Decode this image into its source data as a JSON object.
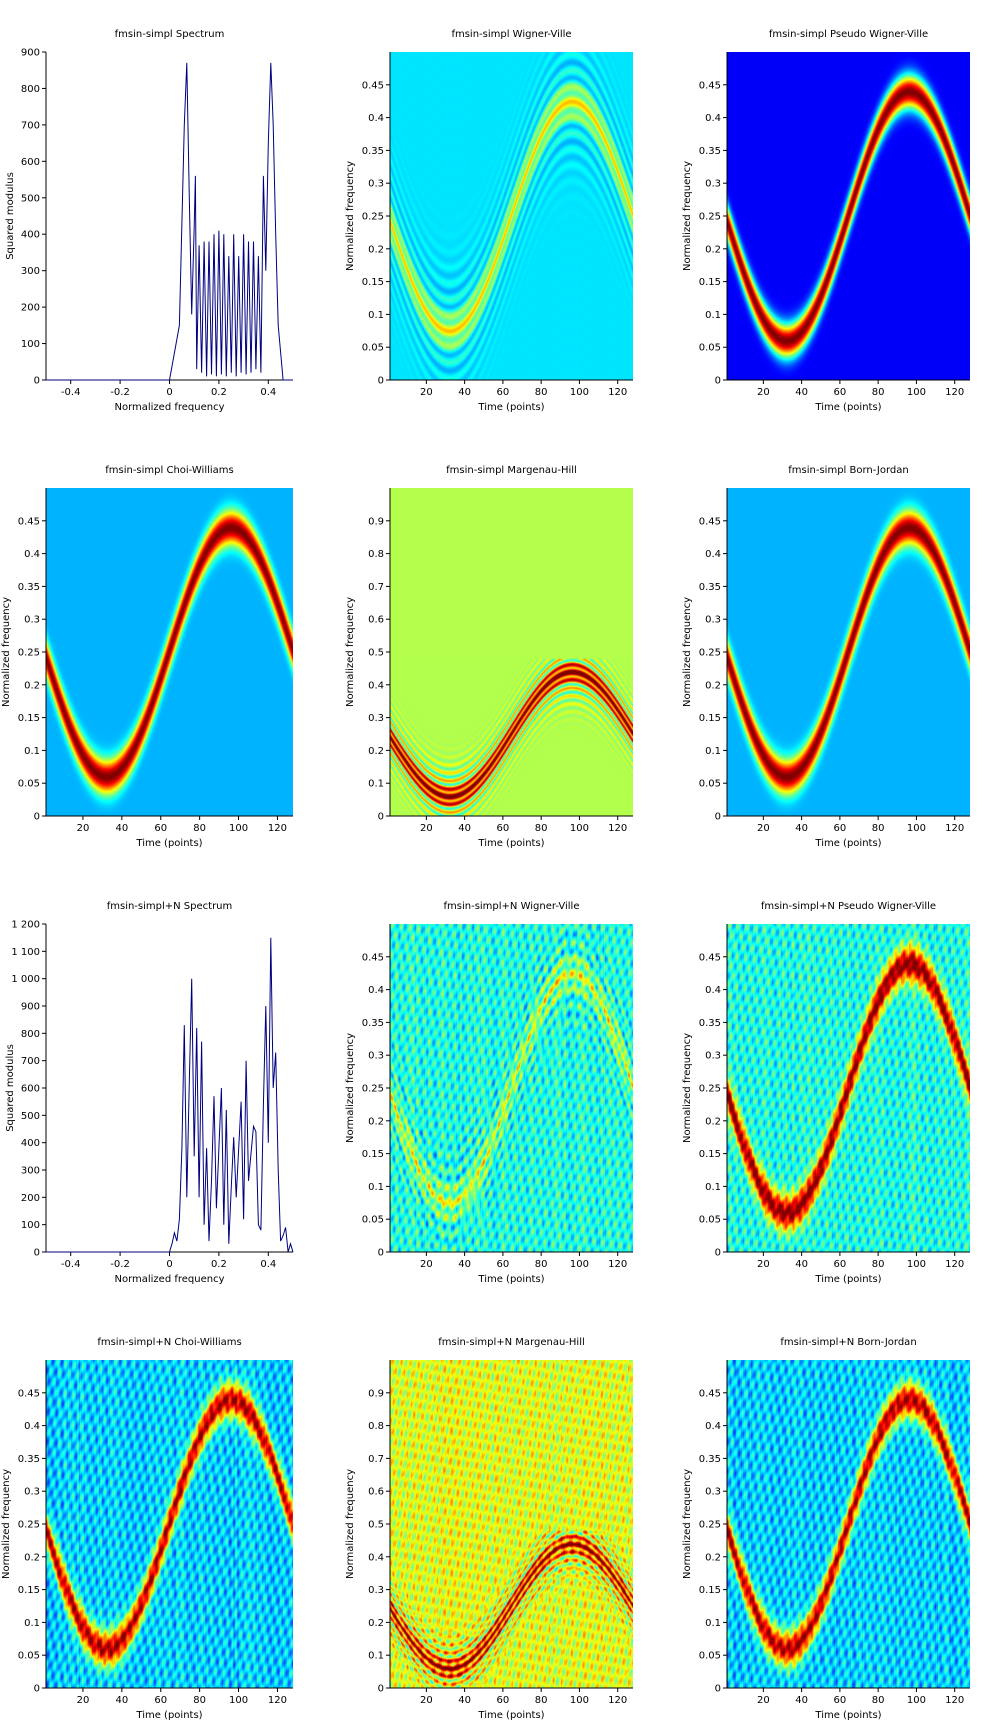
{
  "chart_data": [
    {
      "type": "line",
      "title": "fmsin-simpl Spectrum",
      "xlabel": "Normalized frequency",
      "ylabel": "Squared modulus",
      "xlim": [
        -0.5,
        0.5
      ],
      "ylim": [
        0,
        900
      ],
      "xticks": [
        -0.4,
        -0.2,
        0,
        0.2,
        0.4
      ],
      "xtick_labels": [
        "-0.4",
        "-0.2",
        "0",
        "0.2",
        "0.4"
      ],
      "yticks": [
        0,
        100,
        200,
        300,
        400,
        500,
        600,
        700,
        800,
        900
      ],
      "ytick_labels": [
        "0",
        "100",
        "200",
        "300",
        "400",
        "500",
        "600",
        "700",
        "800",
        "900"
      ],
      "line_color": "#00007f",
      "x": [
        -0.5,
        0.0,
        0.04,
        0.06,
        0.07,
        0.08,
        0.09,
        0.1,
        0.105,
        0.11,
        0.12,
        0.13,
        0.14,
        0.15,
        0.16,
        0.17,
        0.18,
        0.19,
        0.2,
        0.21,
        0.22,
        0.23,
        0.24,
        0.25,
        0.26,
        0.27,
        0.28,
        0.29,
        0.3,
        0.31,
        0.32,
        0.33,
        0.34,
        0.35,
        0.36,
        0.37,
        0.38,
        0.39,
        0.4,
        0.41,
        0.42,
        0.43,
        0.44,
        0.46,
        0.5
      ],
      "y": [
        0,
        0,
        150,
        700,
        870,
        500,
        180,
        420,
        560,
        30,
        370,
        20,
        380,
        10,
        380,
        15,
        400,
        10,
        410,
        15,
        400,
        10,
        340,
        20,
        400,
        10,
        340,
        20,
        400,
        15,
        380,
        20,
        380,
        30,
        340,
        20,
        560,
        300,
        650,
        870,
        700,
        400,
        150,
        0,
        0
      ]
    },
    {
      "type": "heatmap",
      "title": "fmsin-simpl Wigner-Ville",
      "xlabel": "Time (points)",
      "ylabel": "Normalized frequency",
      "xlim": [
        1,
        128
      ],
      "ylim": [
        0,
        0.5
      ],
      "xticks": [
        20,
        40,
        60,
        80,
        100,
        120
      ],
      "xtick_labels": [
        "20",
        "40",
        "60",
        "80",
        "100",
        "120"
      ],
      "yticks": [
        0,
        0.05,
        0.1,
        0.15,
        0.2,
        0.25,
        0.3,
        0.35,
        0.4,
        0.45
      ],
      "ytick_labels": [
        "0",
        "0.05",
        "0.1",
        "0.15",
        "0.2",
        "0.25",
        "0.3",
        "0.35",
        "0.4",
        "0.45"
      ],
      "colormap": "jet",
      "background_level": 0.35,
      "ridge": {
        "center": 0.25,
        "amplitude": 0.175,
        "period": 128,
        "phase_point": 64,
        "peak_level": 0.6,
        "interference_level": 0.15
      }
    },
    {
      "type": "heatmap",
      "title": "fmsin-simpl Pseudo Wigner-Ville",
      "xlabel": "Time (points)",
      "ylabel": "Normalized frequency",
      "xlim": [
        1,
        128
      ],
      "ylim": [
        0,
        0.5
      ],
      "xticks": [
        20,
        40,
        60,
        80,
        100,
        120
      ],
      "xtick_labels": [
        "20",
        "40",
        "60",
        "80",
        "100",
        "120"
      ],
      "yticks": [
        0,
        0.05,
        0.1,
        0.15,
        0.2,
        0.25,
        0.3,
        0.35,
        0.4,
        0.45
      ],
      "ytick_labels": [
        "0",
        "0.05",
        "0.1",
        "0.15",
        "0.2",
        "0.25",
        "0.3",
        "0.35",
        "0.4",
        "0.45"
      ],
      "colormap": "jet",
      "background_level": 0.12,
      "ridge": {
        "center": 0.25,
        "amplitude": 0.19,
        "period": 128,
        "phase_point": 64,
        "peak_level": 1.0
      }
    },
    {
      "type": "heatmap",
      "title": "fmsin-simpl Choi-Williams",
      "xlabel": "Time (points)",
      "ylabel": "Normalized frequency",
      "xlim": [
        1,
        128
      ],
      "ylim": [
        0,
        0.5
      ],
      "xticks": [
        20,
        40,
        60,
        80,
        100,
        120
      ],
      "xtick_labels": [
        "20",
        "40",
        "60",
        "80",
        "100",
        "120"
      ],
      "yticks": [
        0,
        0.05,
        0.1,
        0.15,
        0.2,
        0.25,
        0.3,
        0.35,
        0.4,
        0.45
      ],
      "ytick_labels": [
        "0",
        "0.05",
        "0.1",
        "0.15",
        "0.2",
        "0.25",
        "0.3",
        "0.35",
        "0.4",
        "0.45"
      ],
      "colormap": "jet",
      "background_level": 0.3,
      "ridge": {
        "center": 0.25,
        "amplitude": 0.19,
        "period": 128,
        "phase_point": 64,
        "peak_level": 1.0
      }
    },
    {
      "type": "heatmap",
      "title": "fmsin-simpl Margenau-Hill",
      "xlabel": "Time (points)",
      "ylabel": "Normalized frequency",
      "xlim": [
        1,
        128
      ],
      "ylim": [
        0,
        1
      ],
      "xticks": [
        20,
        40,
        60,
        80,
        100,
        120
      ],
      "xtick_labels": [
        "20",
        "40",
        "60",
        "80",
        "100",
        "120"
      ],
      "yticks": [
        0,
        0.1,
        0.2,
        0.3,
        0.4,
        0.5,
        0.6,
        0.7,
        0.8,
        0.9
      ],
      "ytick_labels": [
        "0",
        "0.1",
        "0.2",
        "0.3",
        "0.4",
        "0.5",
        "0.6",
        "0.7",
        "0.8",
        "0.9"
      ],
      "colormap": "jet",
      "background_level": 0.55,
      "ridge": {
        "center": 0.25,
        "amplitude": 0.19,
        "period": 128,
        "phase_point": 64,
        "peak_level": 1.0,
        "interference_level": 0.4
      }
    },
    {
      "type": "heatmap",
      "title": "fmsin-simpl Born-Jordan",
      "xlabel": "Time (points)",
      "ylabel": "Normalized frequency",
      "xlim": [
        1,
        128
      ],
      "ylim": [
        0,
        0.5
      ],
      "xticks": [
        20,
        40,
        60,
        80,
        100,
        120
      ],
      "xtick_labels": [
        "20",
        "40",
        "60",
        "80",
        "100",
        "120"
      ],
      "yticks": [
        0,
        0.05,
        0.1,
        0.15,
        0.2,
        0.25,
        0.3,
        0.35,
        0.4,
        0.45
      ],
      "ytick_labels": [
        "0",
        "0.05",
        "0.1",
        "0.15",
        "0.2",
        "0.25",
        "0.3",
        "0.35",
        "0.4",
        "0.45"
      ],
      "colormap": "jet",
      "background_level": 0.3,
      "ridge": {
        "center": 0.25,
        "amplitude": 0.19,
        "period": 128,
        "phase_point": 64,
        "peak_level": 1.0
      }
    },
    {
      "type": "line",
      "title": "fmsin-simpl+N Spectrum",
      "xlabel": "Normalized frequency",
      "ylabel": "Squared modulus",
      "xlim": [
        -0.5,
        0.5
      ],
      "ylim": [
        0,
        1200
      ],
      "xticks": [
        -0.4,
        -0.2,
        0,
        0.2,
        0.4
      ],
      "xtick_labels": [
        "-0.4",
        "-0.2",
        "0",
        "0.2",
        "0.4"
      ],
      "yticks": [
        0,
        100,
        200,
        300,
        400,
        500,
        600,
        700,
        800,
        900,
        1000,
        1100,
        1200
      ],
      "ytick_labels": [
        "0",
        "100",
        "200",
        "300",
        "400",
        "500",
        "600",
        "700",
        "800",
        "900",
        "1 000",
        "1 100",
        "1 200"
      ],
      "line_color": "#00007f",
      "x": [
        -0.5,
        0.0,
        0.01,
        0.02,
        0.03,
        0.04,
        0.05,
        0.06,
        0.07,
        0.08,
        0.09,
        0.1,
        0.11,
        0.12,
        0.13,
        0.14,
        0.15,
        0.16,
        0.17,
        0.18,
        0.19,
        0.2,
        0.21,
        0.22,
        0.23,
        0.24,
        0.25,
        0.26,
        0.27,
        0.28,
        0.29,
        0.3,
        0.31,
        0.32,
        0.33,
        0.34,
        0.35,
        0.36,
        0.37,
        0.38,
        0.39,
        0.4,
        0.41,
        0.42,
        0.43,
        0.44,
        0.45,
        0.46,
        0.47,
        0.48,
        0.49,
        0.5
      ],
      "y": [
        0,
        0,
        30,
        70,
        40,
        120,
        380,
        830,
        200,
        620,
        1000,
        350,
        820,
        200,
        770,
        100,
        380,
        40,
        260,
        570,
        160,
        380,
        600,
        100,
        520,
        30,
        240,
        420,
        200,
        380,
        550,
        120,
        700,
        260,
        360,
        460,
        440,
        100,
        80,
        540,
        900,
        400,
        1150,
        600,
        730,
        300,
        40,
        60,
        90,
        0,
        30,
        0
      ]
    },
    {
      "type": "heatmap",
      "title": "fmsin-simpl+N Wigner-Ville",
      "xlabel": "Time (points)",
      "ylabel": "Normalized frequency",
      "xlim": [
        1,
        128
      ],
      "ylim": [
        0,
        0.5
      ],
      "xticks": [
        20,
        40,
        60,
        80,
        100,
        120
      ],
      "xtick_labels": [
        "20",
        "40",
        "60",
        "80",
        "100",
        "120"
      ],
      "yticks": [
        0,
        0.05,
        0.1,
        0.15,
        0.2,
        0.25,
        0.3,
        0.35,
        0.4,
        0.45
      ],
      "ytick_labels": [
        "0",
        "0.05",
        "0.1",
        "0.15",
        "0.2",
        "0.25",
        "0.3",
        "0.35",
        "0.4",
        "0.45"
      ],
      "colormap": "jet",
      "background_level": 0.4,
      "ridge": {
        "center": 0.25,
        "amplitude": 0.175,
        "period": 128,
        "phase_point": 64,
        "peak_level": 0.55,
        "interference_level": 0.15
      }
    },
    {
      "type": "heatmap",
      "title": "fmsin-simpl+N Pseudo Wigner-Ville",
      "xlabel": "Time (points)",
      "ylabel": "Normalized frequency",
      "xlim": [
        1,
        128
      ],
      "ylim": [
        0,
        0.5
      ],
      "xticks": [
        20,
        40,
        60,
        80,
        100,
        120
      ],
      "xtick_labels": [
        "20",
        "40",
        "60",
        "80",
        "100",
        "120"
      ],
      "yticks": [
        0,
        0.05,
        0.1,
        0.15,
        0.2,
        0.25,
        0.3,
        0.35,
        0.4,
        0.45
      ],
      "ytick_labels": [
        "0",
        "0.05",
        "0.1",
        "0.15",
        "0.2",
        "0.25",
        "0.3",
        "0.35",
        "0.4",
        "0.45"
      ],
      "colormap": "jet",
      "background_level": 0.4,
      "ridge": {
        "center": 0.25,
        "amplitude": 0.19,
        "period": 128,
        "phase_point": 64,
        "peak_level": 1.0
      }
    },
    {
      "type": "heatmap",
      "title": "fmsin-simpl+N Choi-Williams",
      "xlabel": "Time (points)",
      "ylabel": "Normalized frequency",
      "xlim": [
        1,
        128
      ],
      "ylim": [
        0,
        0.5
      ],
      "xticks": [
        20,
        40,
        60,
        80,
        100,
        120
      ],
      "xtick_labels": [
        "20",
        "40",
        "60",
        "80",
        "100",
        "120"
      ],
      "yticks": [
        0,
        0.05,
        0.1,
        0.15,
        0.2,
        0.25,
        0.3,
        0.35,
        0.4,
        0.45
      ],
      "ytick_labels": [
        "0",
        "0.05",
        "0.1",
        "0.15",
        "0.2",
        "0.25",
        "0.3",
        "0.35",
        "0.4",
        "0.45"
      ],
      "colormap": "jet",
      "background_level": 0.33,
      "ridge": {
        "center": 0.25,
        "amplitude": 0.19,
        "period": 128,
        "phase_point": 64,
        "peak_level": 0.95
      }
    },
    {
      "type": "heatmap",
      "title": "fmsin-simpl+N Margenau-Hill",
      "xlabel": "Time (points)",
      "ylabel": "Normalized frequency",
      "xlim": [
        1,
        128
      ],
      "ylim": [
        0,
        1
      ],
      "xticks": [
        20,
        40,
        60,
        80,
        100,
        120
      ],
      "xtick_labels": [
        "20",
        "40",
        "60",
        "80",
        "100",
        "120"
      ],
      "yticks": [
        0,
        0.1,
        0.2,
        0.3,
        0.4,
        0.5,
        0.6,
        0.7,
        0.8,
        0.9
      ],
      "ytick_labels": [
        "0",
        "0.1",
        "0.2",
        "0.3",
        "0.4",
        "0.5",
        "0.6",
        "0.7",
        "0.8",
        "0.9"
      ],
      "colormap": "jet",
      "background_level": 0.6,
      "ridge": {
        "center": 0.25,
        "amplitude": 0.19,
        "period": 128,
        "phase_point": 64,
        "peak_level": 0.9,
        "interference_level": 0.35
      }
    },
    {
      "type": "heatmap",
      "title": "fmsin-simpl+N Born-Jordan",
      "xlabel": "Time (points)",
      "ylabel": "Normalized frequency",
      "xlim": [
        1,
        128
      ],
      "ylim": [
        0,
        0.5
      ],
      "xticks": [
        20,
        40,
        60,
        80,
        100,
        120
      ],
      "xtick_labels": [
        "20",
        "40",
        "60",
        "80",
        "100",
        "120"
      ],
      "yticks": [
        0,
        0.05,
        0.1,
        0.15,
        0.2,
        0.25,
        0.3,
        0.35,
        0.4,
        0.45
      ],
      "ytick_labels": [
        "0",
        "0.05",
        "0.1",
        "0.15",
        "0.2",
        "0.25",
        "0.3",
        "0.35",
        "0.4",
        "0.45"
      ],
      "colormap": "jet",
      "background_level": 0.33,
      "ridge": {
        "center": 0.25,
        "amplitude": 0.19,
        "period": 128,
        "phase_point": 64,
        "peak_level": 0.95
      }
    }
  ]
}
